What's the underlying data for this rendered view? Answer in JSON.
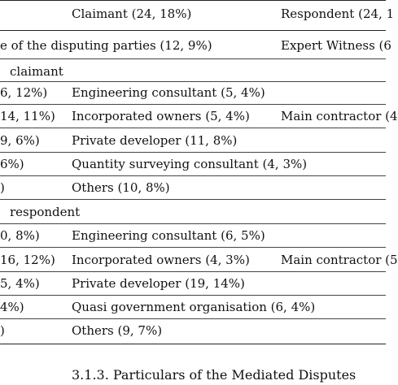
{
  "table": {
    "header": {
      "claimant": "Claimant (24, 18%)",
      "respondent": "Respondent (24, 1"
    },
    "row_parties": {
      "left": "e of the disputing parties (12, 9%)",
      "right": "Expert Witness (6"
    },
    "claimant_section": {
      "title": "claimant",
      "rows": [
        {
          "c1": "6, 12%)",
          "c2": "Engineering consultant (5, 4%)",
          "c3": ""
        },
        {
          "c1": "14, 11%)",
          "c2": "Incorporated owners (5, 4%)",
          "c3": "Main contractor (4"
        },
        {
          "c1": "9, 6%)",
          "c2": "Private developer (11, 8%)",
          "c3": ""
        },
        {
          "c1": "6%)",
          "c2": "Quantity surveying consultant (4, 3%)",
          "c3": ""
        },
        {
          "c1": ")",
          "c2": "Others (10, 8%)",
          "c3": ""
        }
      ]
    },
    "respondent_section": {
      "title": "respondent",
      "rows": [
        {
          "c1": "0, 8%)",
          "c2": "Engineering consultant (6, 5%)",
          "c3": ""
        },
        {
          "c1": "16, 12%)",
          "c2": "Incorporated owners (4, 3%)",
          "c3": "Main contractor (5"
        },
        {
          "c1": "5, 4%)",
          "c2": "Private developer (19, 14%)",
          "c3": ""
        },
        {
          "c1": "4%)",
          "c2": "Quasi government organisation (6, 4%)",
          "c3": ""
        },
        {
          "c1": ")",
          "c2": "Others (9, 7%)",
          "c3": ""
        }
      ]
    }
  },
  "section_heading": "3.1.3. Particulars of the Mediated Disputes"
}
